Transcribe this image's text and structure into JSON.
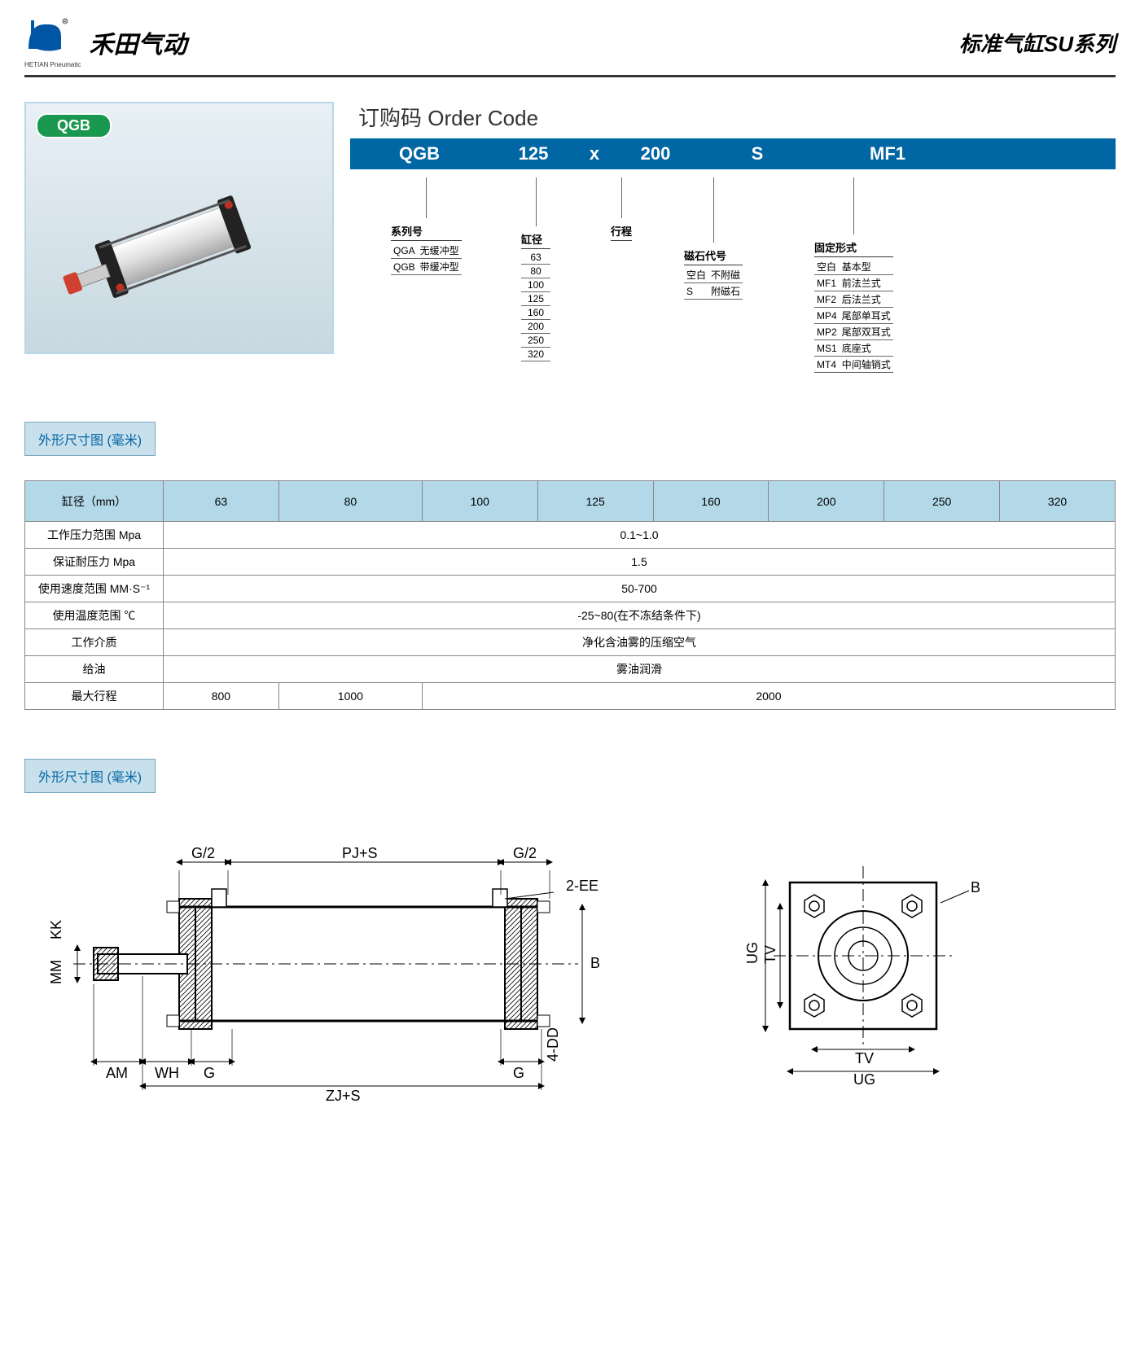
{
  "header": {
    "company": "禾田气动",
    "sub": "HETIAN Pneumatic",
    "series": "标准气缸SU系列",
    "logo_color": "#0055a4"
  },
  "product_badge": "QGB",
  "order_code": {
    "title": "订购码 Order Code",
    "bar_color": "#0066a4",
    "segments": {
      "series": "QGB",
      "bore": "125",
      "x": "x",
      "stroke": "200",
      "magnet": "S",
      "mount": "MF1"
    },
    "breakdown": {
      "series": {
        "title": "系列号",
        "rows": [
          [
            "QGA",
            "无缓冲型"
          ],
          [
            "QGB",
            "带缓冲型"
          ]
        ]
      },
      "bore": {
        "title": "缸径",
        "values": [
          "63",
          "80",
          "100",
          "125",
          "160",
          "200",
          "250",
          "320"
        ]
      },
      "stroke": {
        "title": "行程"
      },
      "magnet": {
        "title": "磁石代号",
        "rows": [
          [
            "空白",
            "不附磁"
          ],
          [
            "S",
            "附磁石"
          ]
        ]
      },
      "mount": {
        "title": "固定形式",
        "rows": [
          [
            "空白",
            "基本型"
          ],
          [
            "MF1",
            "前法兰式"
          ],
          [
            "MF2",
            "后法兰式"
          ],
          [
            "MP4",
            "尾部单耳式"
          ],
          [
            "MP2",
            "尾部双耳式"
          ],
          [
            "MS1",
            "底座式"
          ],
          [
            "MT4",
            "中间轴销式"
          ]
        ]
      }
    }
  },
  "section_label": "外形尺寸图 (毫米)",
  "spec_table": {
    "header_bg": "#b3d9e8",
    "border_color": "#888888",
    "header": [
      "缸径（mm）",
      "63",
      "80",
      "100",
      "125",
      "160",
      "200",
      "250",
      "320"
    ],
    "rows": [
      {
        "label": "工作压力范围 Mpa",
        "span": 8,
        "value": "0.1~1.0"
      },
      {
        "label": "保证耐压力 Mpa",
        "span": 8,
        "value": "1.5"
      },
      {
        "label": "使用速度范围 MM·S⁻¹",
        "span": 8,
        "value": "50-700"
      },
      {
        "label": "使用温度范围 ℃",
        "span": 8,
        "value": "-25~80(在不冻结条件下)"
      },
      {
        "label": "工作介质",
        "span": 8,
        "value": "净化含油雾的压缩空气"
      },
      {
        "label": "给油",
        "span": 8,
        "value": "雾油润滑"
      },
      {
        "label": "最大行程",
        "cells": [
          {
            "span": 1,
            "value": "800"
          },
          {
            "span": 1,
            "value": "1000"
          },
          {
            "span": 6,
            "value": "2000"
          }
        ]
      }
    ]
  },
  "drawing_labels": {
    "main": [
      "G/2",
      "PJ+S",
      "G/2",
      "2-EE",
      "KK",
      "MM",
      "AM",
      "WH",
      "G",
      "ZJ+S",
      "G",
      "4-DD",
      "B"
    ],
    "side": [
      "UG",
      "TV",
      "TV",
      "UG",
      "B"
    ]
  },
  "colors": {
    "label_bg": "#c8e0ec",
    "label_border": "#7aa8c0",
    "label_text": "#0066a4",
    "pill_bg": "#1a9850"
  }
}
